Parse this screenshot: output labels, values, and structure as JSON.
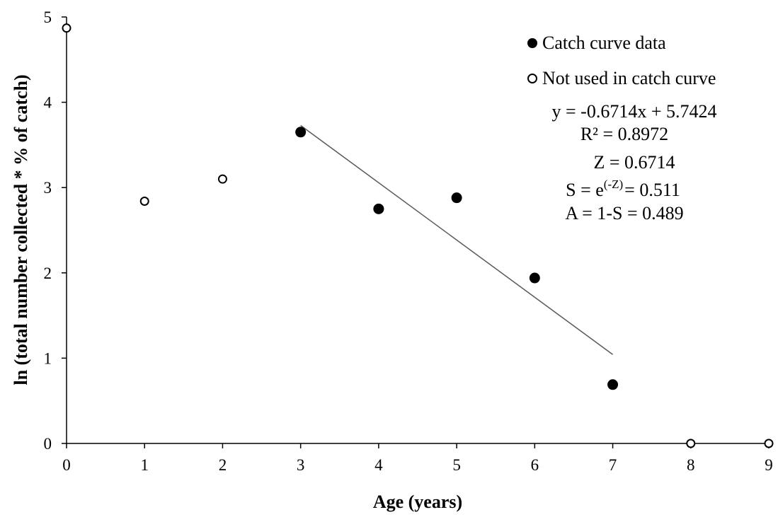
{
  "chart_data": {
    "type": "scatter",
    "title": "",
    "xlabel": "Age (years)",
    "ylabel": "ln (total number collected * % of catch)",
    "xlim": [
      0,
      9
    ],
    "ylim": [
      0,
      5
    ],
    "x_ticks": [
      "0",
      "1",
      "2",
      "3",
      "4",
      "5",
      "6",
      "7",
      "8",
      "9"
    ],
    "y_ticks": [
      "0",
      "1",
      "2",
      "3",
      "4",
      "5"
    ],
    "grid": false,
    "legend_position": "top-right",
    "series": [
      {
        "name": "Catch curve data",
        "marker": "filled-circle",
        "color": "#000000",
        "points": [
          {
            "x": 3,
            "y": 3.65
          },
          {
            "x": 4,
            "y": 2.75
          },
          {
            "x": 5,
            "y": 2.88
          },
          {
            "x": 6,
            "y": 1.94
          },
          {
            "x": 7,
            "y": 0.69
          }
        ]
      },
      {
        "name": "Not used in catch curve",
        "marker": "open-circle",
        "color": "#000000",
        "points": [
          {
            "x": 0,
            "y": 4.87
          },
          {
            "x": 1,
            "y": 2.84
          },
          {
            "x": 2,
            "y": 3.1
          },
          {
            "x": 8,
            "y": 0
          },
          {
            "x": 9,
            "y": 0
          }
        ]
      }
    ],
    "trendline": {
      "slope": -0.6714,
      "intercept": 5.7424,
      "x_range": [
        3,
        7
      ],
      "color": "#595959"
    },
    "annotations": {
      "equation": "y = -0.6714x  + 5.7424",
      "r_squared": "R² = 0.8972",
      "z": "Z = 0.6714",
      "s_prefix": "S = e",
      "s_superscript": "(-Z)",
      "s_suffix": "= 0.511",
      "a": "A = 1-S = 0.489"
    }
  }
}
